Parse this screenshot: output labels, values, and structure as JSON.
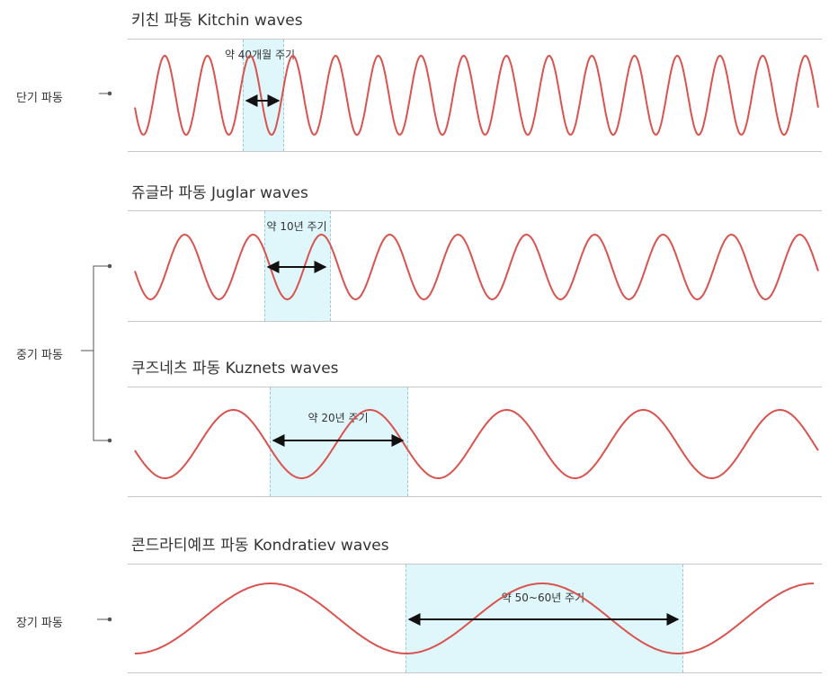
{
  "panels": [
    {
      "title": "키친 파동 Kitchin waves",
      "period_label": "약 40개월 주기",
      "cycles_shown": 16
    },
    {
      "title": "쥬글라 파동 Juglar waves",
      "period_label": "약 10년 주기",
      "cycles_shown": 10
    },
    {
      "title": "쿠즈네츠 파동 Kuznets waves",
      "period_label": "약 20년 주기",
      "cycles_shown": 5
    },
    {
      "title": "콘드라티예프 파동 Kondratiev waves",
      "period_label": "약 50~60년 주기",
      "cycles_shown": 2.5
    }
  ],
  "side_labels": {
    "short": "단기 파동",
    "medium": "중기 파동",
    "long": "장기 파동"
  },
  "colors": {
    "wave": "#d9534f",
    "band": "#dff6fb",
    "rule": "#c8c8c8",
    "arrow": "#111111"
  }
}
